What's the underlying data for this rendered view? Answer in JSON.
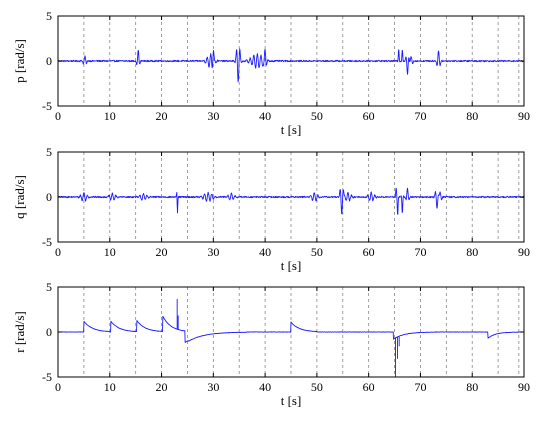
{
  "chart_data": [
    {
      "type": "line",
      "xlabel": "t [s]",
      "ylabel": "p [rad/s]",
      "xlim": [
        0,
        90
      ],
      "ylim": [
        -5,
        5
      ],
      "xticks": [
        0,
        10,
        20,
        30,
        40,
        50,
        60,
        70,
        80,
        90
      ],
      "yticks": [
        -5,
        0,
        5
      ],
      "vlines": [
        5,
        10,
        15,
        20,
        25,
        30,
        35,
        40,
        45,
        50,
        55,
        60,
        65,
        70,
        75,
        80,
        85,
        89
      ],
      "series": [
        {
          "color": "#1a1aff",
          "baseline": 0,
          "noise": 0.08,
          "events": [
            {
              "t": 5.2,
              "amp": 0.5,
              "dur": 0.6
            },
            {
              "t": 15.5,
              "amp": 1.2,
              "dur": 0.4
            },
            {
              "t": 29.5,
              "amp": 0.8,
              "dur": 1.2
            },
            {
              "t": 30.0,
              "amp": 1.2,
              "dur": 0.3
            },
            {
              "t": 34.8,
              "amp": -2.3,
              "dur": 0.6
            },
            {
              "t": 38.5,
              "amp": 0.8,
              "dur": 2.0
            },
            {
              "t": 40.0,
              "amp": 1.1,
              "dur": 0.4
            },
            {
              "t": 65.8,
              "amp": 1.3,
              "dur": 0.2
            },
            {
              "t": 66.5,
              "amp": 1.3,
              "dur": 0.2
            },
            {
              "t": 67.5,
              "amp": -1.5,
              "dur": 0.4
            },
            {
              "t": 68.2,
              "amp": 0.5,
              "dur": 0.5
            },
            {
              "t": 73.5,
              "amp": 1.2,
              "dur": 0.5
            }
          ]
        }
      ]
    },
    {
      "type": "line",
      "xlabel": "t [s]",
      "ylabel": "q [rad/s]",
      "xlim": [
        0,
        90
      ],
      "ylim": [
        -5,
        5
      ],
      "xticks": [
        0,
        10,
        20,
        30,
        40,
        50,
        60,
        70,
        80,
        90
      ],
      "yticks": [
        -5,
        0,
        5
      ],
      "vlines": [
        5,
        10,
        15,
        20,
        25,
        30,
        35,
        40,
        45,
        50,
        55,
        60,
        65,
        70,
        75,
        80,
        85,
        89
      ],
      "series": [
        {
          "color": "#1a1aff",
          "baseline": 0,
          "noise": 0.08,
          "events": [
            {
              "t": 5.0,
              "amp": 0.5,
              "dur": 1.0
            },
            {
              "t": 10.5,
              "amp": 0.4,
              "dur": 1.0
            },
            {
              "t": 16.5,
              "amp": 0.4,
              "dur": 1.0
            },
            {
              "t": 23.0,
              "amp": 1.6,
              "dur": 0.15
            },
            {
              "t": 23.05,
              "amp": -2.8,
              "dur": 0.15
            },
            {
              "t": 29.0,
              "amp": 0.5,
              "dur": 1.5
            },
            {
              "t": 33.5,
              "amp": 0.4,
              "dur": 1.0
            },
            {
              "t": 49.5,
              "amp": 0.5,
              "dur": 1.0
            },
            {
              "t": 54.8,
              "amp": -1.9,
              "dur": 0.5
            },
            {
              "t": 56.0,
              "amp": 0.5,
              "dur": 1.0
            },
            {
              "t": 60.5,
              "amp": 0.5,
              "dur": 1.0
            },
            {
              "t": 65.3,
              "amp": 1.0,
              "dur": 0.2
            },
            {
              "t": 65.6,
              "amp": -2.1,
              "dur": 0.2
            },
            {
              "t": 66.5,
              "amp": -1.8,
              "dur": 0.2
            },
            {
              "t": 67.5,
              "amp": 1.0,
              "dur": 0.4
            },
            {
              "t": 73.2,
              "amp": -1.3,
              "dur": 0.5
            },
            {
              "t": 73.8,
              "amp": 0.6,
              "dur": 0.5
            }
          ]
        }
      ]
    },
    {
      "type": "line",
      "xlabel": "t [s]",
      "ylabel": "r [rad/s]",
      "xlim": [
        0,
        90
      ],
      "ylim": [
        -5,
        5
      ],
      "xticks": [
        0,
        10,
        20,
        30,
        40,
        50,
        60,
        70,
        80,
        90
      ],
      "yticks": [
        -5,
        0,
        5
      ],
      "vlines": [
        5,
        10,
        15,
        20,
        25,
        30,
        35,
        40,
        45,
        50,
        55,
        60,
        65,
        70,
        75,
        80,
        85,
        89
      ],
      "series": [
        {
          "color": "#1a1aff",
          "baseline": 0,
          "noise": 0.02,
          "steps": [
            {
              "t": 5.0,
              "peak": 1.2
            },
            {
              "t": 10.2,
              "peak": 1.2
            },
            {
              "t": 15.2,
              "peak": 1.3
            },
            {
              "t": 20.2,
              "peak": 1.8
            },
            {
              "t": 45.0,
              "peak": 1.1
            }
          ],
          "spikes": [
            {
              "t": 23.0,
              "amp": 3.3
            },
            {
              "t": 23.2,
              "amp": 1.5
            },
            {
              "t": 65.2,
              "amp": -4.9
            },
            {
              "t": 65.6,
              "amp": -2.4
            },
            {
              "t": 65.9,
              "amp": -1.1
            }
          ],
          "dips": [
            {
              "t": 24.5,
              "amp": -1.3,
              "tau": 3.0
            },
            {
              "t": 64.8,
              "amp": -0.8,
              "tau": 2.0
            },
            {
              "t": 83.0,
              "amp": -0.7,
              "tau": 1.5
            }
          ]
        }
      ]
    }
  ]
}
